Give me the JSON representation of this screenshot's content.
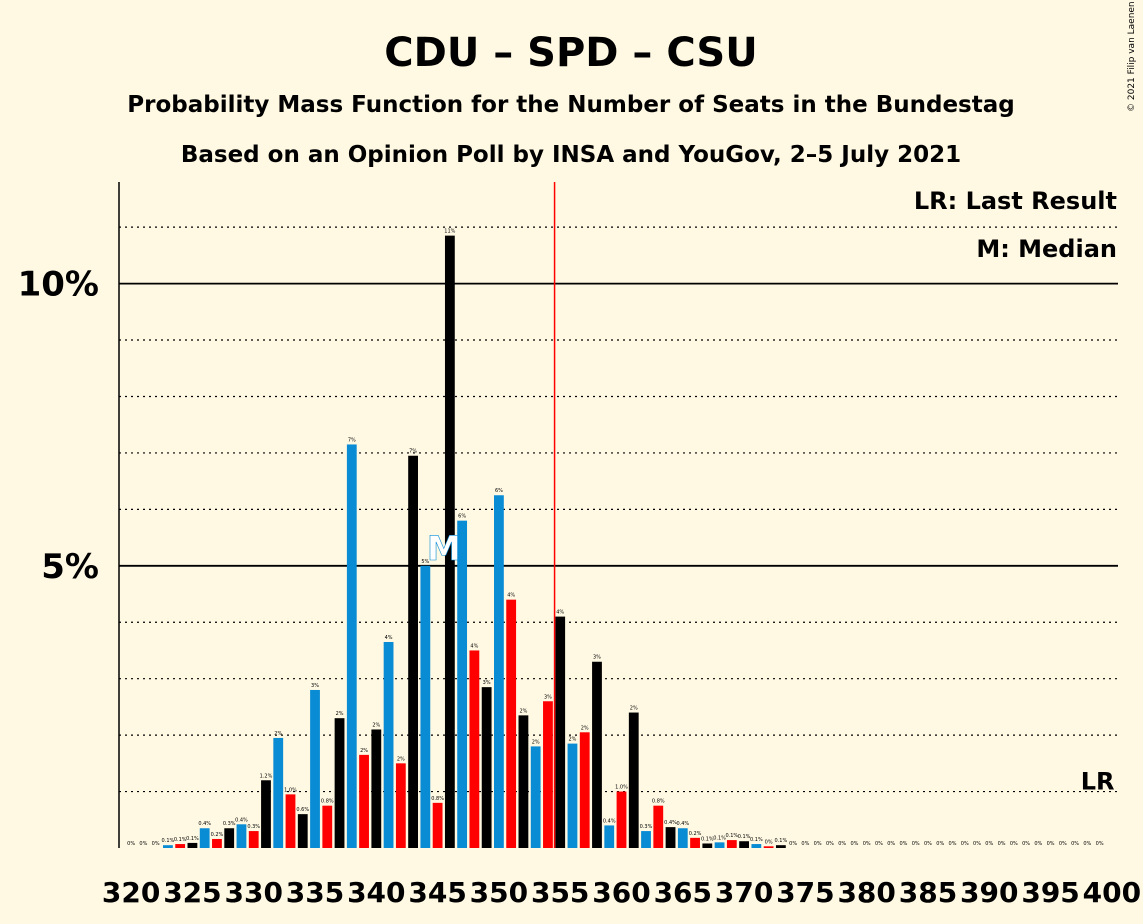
{
  "title": "CDU – SPD – CSU",
  "subtitle_1": "Probability Mass Function for the Number of Seats in the Bundestag",
  "subtitle_2": "Based on an Opinion Poll by INSA and YouGov, 2–5 July 2021",
  "copyright": "© 2021 Filip van Laenen",
  "legend": {
    "last_result": "LR: Last Result",
    "median": "M: Median"
  },
  "markers": {
    "median_label": "M",
    "last_result_label": "LR"
  },
  "colors": {
    "blue": "#0A8CD5",
    "red": "#FF0000",
    "black": "#000000",
    "background": "#FFF9E3",
    "majority_line": "#FF0000"
  },
  "chart_data": {
    "type": "bar",
    "x_start": 320,
    "x_end": 400,
    "majority_seat": 355,
    "median_seat": 346,
    "last_result_seat": 399,
    "ylim": [
      0,
      11.8
    ],
    "y_tick_values": [
      5,
      10
    ],
    "y_tick_labels": [
      "5%",
      "10%"
    ],
    "x_tick_labels": [
      "320",
      "325",
      "330",
      "335",
      "340",
      "345",
      "350",
      "355",
      "360",
      "365",
      "370",
      "375",
      "380",
      "385",
      "390",
      "395",
      "400"
    ],
    "series_colors": [
      "blue",
      "red",
      "black"
    ],
    "values": [
      0,
      0,
      0,
      0.05,
      0.07,
      0.09,
      0.35,
      0.16,
      0.35,
      0.42,
      0.3,
      1.2,
      1.95,
      0.95,
      0.6,
      2.8,
      0.75,
      2.3,
      7.15,
      1.65,
      2.1,
      3.65,
      1.5,
      6.95,
      5.0,
      0.8,
      10.85,
      5.8,
      3.5,
      2.85,
      6.25,
      4.4,
      2.35,
      1.8,
      2.6,
      4.1,
      1.85,
      2.05,
      3.3,
      0.4,
      1.0,
      2.4,
      0.3,
      0.75,
      0.37,
      0.35,
      0.18,
      0.08,
      0.1,
      0.14,
      0.12,
      0.07,
      0.03,
      0.05,
      0,
      0,
      0,
      0,
      0,
      0,
      0,
      0,
      0,
      0,
      0,
      0,
      0,
      0,
      0,
      0,
      0,
      0,
      0,
      0,
      0,
      0,
      0,
      0,
      0,
      0
    ],
    "data_labels": [
      "0%",
      "0%",
      "0%",
      "0.1%",
      "0.1%",
      "0.1%",
      "0.4%",
      "0.2%",
      "0.3%",
      "0.4%",
      "0.3%",
      "1.2%",
      "2%",
      "1.0%",
      "0.6%",
      "3%",
      "0.8%",
      "2%",
      "7%",
      "2%",
      "2%",
      "4%",
      "2%",
      "7%",
      "5%",
      "0.8%",
      "11%",
      "6%",
      "4%",
      "3%",
      "6%",
      "4%",
      "2%",
      "2%",
      "3%",
      "4%",
      "2%",
      "2%",
      "3%",
      "0.4%",
      "1.0%",
      "2%",
      "0.3%",
      "0.8%",
      "0.4%",
      "0.4%",
      "0.2%",
      "0.1%",
      "0.1%",
      "0.1%",
      "0.1%",
      "0.1%",
      "0%",
      "0.1%",
      "0%",
      "0%",
      "0%",
      "0%",
      "0%",
      "0%",
      "0%",
      "0%",
      "0%",
      "0%",
      "0%",
      "0%",
      "0%",
      "0%",
      "0%",
      "0%",
      "0%",
      "0%",
      "0%",
      "0%",
      "0%",
      "0%",
      "0%",
      "0%",
      "0%",
      "0%"
    ]
  }
}
